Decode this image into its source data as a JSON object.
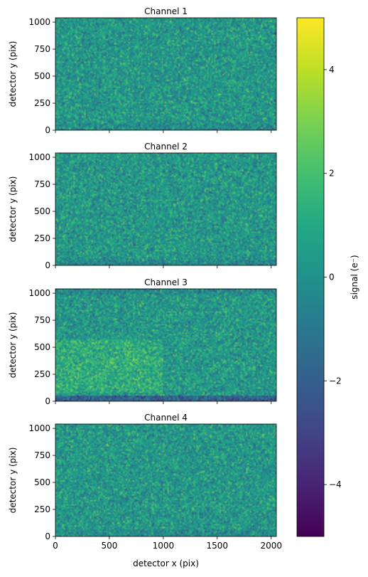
{
  "chart_data": {
    "type": "heatmap",
    "panels": [
      {
        "title": "Channel 1",
        "texture": "uniform"
      },
      {
        "title": "Channel 2",
        "texture": "bottom-dark"
      },
      {
        "title": "Channel 3",
        "texture": "left-bright-bottom-dark"
      },
      {
        "title": "Channel 4",
        "texture": "uniform"
      }
    ],
    "shared_x": true,
    "xlabel": "detector x (pix)",
    "ylabel": "detector y (pix)",
    "xlim": [
      0,
      2048
    ],
    "ylim": [
      0,
      1040
    ],
    "x_ticks": [
      0,
      500,
      1000,
      1500,
      2000
    ],
    "y_ticks": [
      0,
      250,
      500,
      750,
      1000
    ],
    "colorbar": {
      "label": "signal (e⁻)",
      "range": [
        -5,
        5
      ],
      "ticks": [
        4,
        2,
        0,
        -2,
        -4
      ],
      "tick_labels": [
        "4",
        "2",
        "0",
        "−2",
        "−4"
      ],
      "colormap": "viridis"
    }
  }
}
